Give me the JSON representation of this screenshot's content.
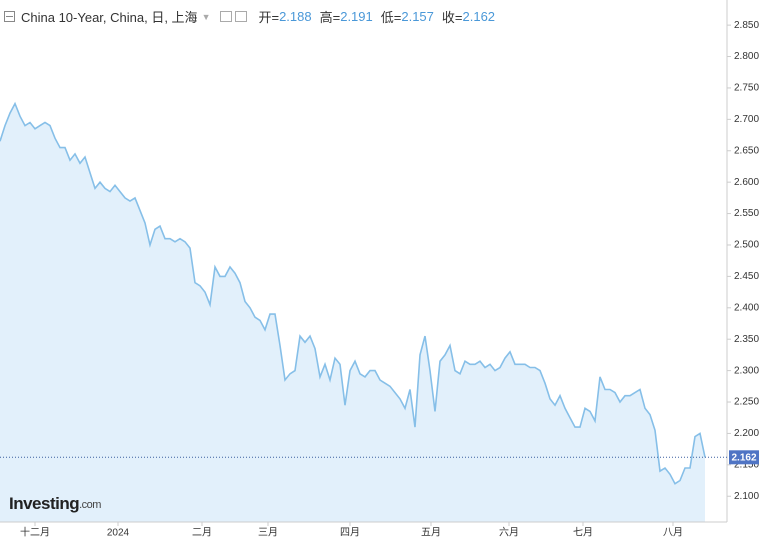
{
  "chart_data": {
    "type": "area",
    "title": "China 10-Year, China, 日, 上海",
    "ohlc": [
      {
        "label": "开=",
        "value": 2.188
      },
      {
        "label": "高=",
        "value": 2.191
      },
      {
        "label": "低=",
        "value": 2.157
      },
      {
        "label": "收=",
        "value": 2.162
      }
    ],
    "logo": [
      "Investing",
      ".com"
    ],
    "color": "#86bfe8",
    "fill": "#e2f0fb",
    "grid": false,
    "x": [
      0,
      1,
      2,
      3,
      4,
      5,
      6,
      7,
      8,
      9,
      10,
      11,
      12,
      13,
      14,
      15,
      16,
      17,
      18,
      19,
      20,
      21,
      22,
      23,
      24,
      25,
      26,
      27,
      28,
      29,
      30,
      31,
      32,
      33,
      34,
      35,
      36,
      37,
      38,
      39,
      40,
      41,
      42,
      43,
      44,
      45,
      46,
      47,
      48,
      49,
      50,
      51,
      52,
      53,
      54,
      55,
      56,
      57,
      58,
      59,
      60,
      61,
      62,
      63,
      64,
      65,
      66,
      67,
      68,
      69,
      70,
      71,
      72,
      73,
      74,
      75,
      76,
      77,
      78,
      79,
      80,
      81,
      82,
      83,
      84,
      85,
      86,
      87,
      88,
      89,
      90,
      91,
      92,
      93,
      94,
      95,
      96,
      97,
      98,
      99,
      100,
      101,
      102,
      103,
      104,
      105,
      106,
      107,
      108,
      109,
      110,
      111,
      112,
      113,
      114,
      115,
      116,
      117,
      118,
      119,
      120,
      121,
      122,
      123,
      124,
      125,
      126,
      127,
      128,
      129,
      130,
      131,
      132,
      133,
      134,
      135,
      136,
      137,
      138,
      139,
      140,
      141
    ],
    "values": [
      2.665,
      2.69,
      2.71,
      2.725,
      2.705,
      2.69,
      2.695,
      2.685,
      2.69,
      2.695,
      2.69,
      2.67,
      2.655,
      2.655,
      2.635,
      2.645,
      2.63,
      2.64,
      2.615,
      2.59,
      2.6,
      2.59,
      2.585,
      2.595,
      2.585,
      2.575,
      2.57,
      2.575,
      2.555,
      2.535,
      2.5,
      2.525,
      2.53,
      2.51,
      2.51,
      2.505,
      2.51,
      2.505,
      2.495,
      2.44,
      2.435,
      2.425,
      2.405,
      2.465,
      2.45,
      2.45,
      2.465,
      2.455,
      2.44,
      2.41,
      2.4,
      2.385,
      2.38,
      2.365,
      2.39,
      2.39,
      2.34,
      2.285,
      2.295,
      2.3,
      2.355,
      2.345,
      2.355,
      2.335,
      2.29,
      2.31,
      2.285,
      2.32,
      2.31,
      2.245,
      2.3,
      2.315,
      2.295,
      2.29,
      2.3,
      2.3,
      2.285,
      2.28,
      2.275,
      2.265,
      2.255,
      2.24,
      2.27,
      2.21,
      2.325,
      2.355,
      2.3,
      2.235,
      2.315,
      2.325,
      2.34,
      2.3,
      2.295,
      2.315,
      2.31,
      2.31,
      2.315,
      2.305,
      2.31,
      2.3,
      2.305,
      2.32,
      2.33,
      2.31,
      2.31,
      2.31,
      2.305,
      2.305,
      2.3,
      2.28,
      2.255,
      2.245,
      2.26,
      2.24,
      2.225,
      2.21,
      2.21,
      2.24,
      2.235,
      2.22,
      2.29,
      2.27,
      2.27,
      2.265,
      2.25,
      2.26,
      2.26,
      2.265,
      2.27,
      2.24,
      2.23,
      2.205,
      2.14,
      2.145,
      2.135,
      2.12,
      2.125,
      2.145,
      2.145,
      2.195,
      2.2,
      2.162
    ],
    "xlim": [
      0,
      145.4
    ],
    "xticks": [
      {
        "value": 7,
        "label": "十二月"
      },
      {
        "value": 23.6,
        "label": "2024"
      },
      {
        "value": 40.4,
        "label": "二月"
      },
      {
        "value": 53.6,
        "label": "三月"
      },
      {
        "value": 70,
        "label": "四月"
      },
      {
        "value": 86.2,
        "label": "五月"
      },
      {
        "value": 101.8,
        "label": "六月"
      },
      {
        "value": 116.6,
        "label": "七月"
      },
      {
        "value": 134.6,
        "label": "八月"
      }
    ],
    "ylim": [
      2.059,
      2.89
    ],
    "yticks": [
      {
        "value": 2.1,
        "label": "2.100"
      },
      {
        "value": 2.15,
        "label": "2.150"
      },
      {
        "value": 2.2,
        "label": "2.200"
      },
      {
        "value": 2.25,
        "label": "2.250"
      },
      {
        "value": 2.3,
        "label": "2.300"
      },
      {
        "value": 2.35,
        "label": "2.350"
      },
      {
        "value": 2.4,
        "label": "2.400"
      },
      {
        "value": 2.45,
        "label": "2.450"
      },
      {
        "value": 2.5,
        "label": "2.500"
      },
      {
        "value": 2.55,
        "label": "2.550"
      },
      {
        "value": 2.6,
        "label": "2.600"
      },
      {
        "value": 2.65,
        "label": "2.650"
      },
      {
        "value": 2.7,
        "label": "2.700"
      },
      {
        "value": 2.75,
        "label": "2.750"
      },
      {
        "value": 2.8,
        "label": "2.800"
      },
      {
        "value": 2.85,
        "label": "2.850"
      }
    ]
  }
}
